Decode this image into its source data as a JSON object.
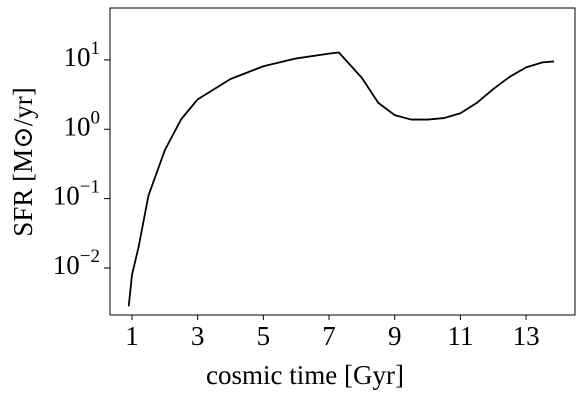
{
  "chart_data": {
    "type": "line",
    "x_label": "cosmic time [Gyr]",
    "y_label": "SFR [M⊙/yr]",
    "x": [
      0.9,
      1.0,
      1.2,
      1.5,
      2,
      2.5,
      3,
      4,
      5,
      6,
      7,
      7.3,
      8,
      8.5,
      9,
      9.5,
      10,
      10.5,
      11,
      11.5,
      12,
      12.5,
      13,
      13.5,
      13.85
    ],
    "series": [
      {
        "color": "#000000",
        "values": [
          0.0028,
          0.008,
          0.02,
          0.11,
          0.5,
          1.4,
          2.7,
          5.3,
          8.1,
          10.5,
          12.3,
          12.8,
          5.5,
          2.4,
          1.6,
          1.38,
          1.38,
          1.45,
          1.7,
          2.4,
          3.8,
          5.7,
          7.8,
          9.2,
          9.5
        ]
      }
    ],
    "xlim": [
      0.33,
      14.49
    ],
    "ylim": [
      0.0021,
      56
    ],
    "log_y": true,
    "xticks": [
      1,
      3,
      5,
      7,
      9,
      11,
      13
    ],
    "yticks": [
      {
        "value": 0.01,
        "label": "10^−2"
      },
      {
        "value": 0.1,
        "label": "10^−1"
      },
      {
        "value": 1,
        "label": "10^0"
      },
      {
        "value": 10,
        "label": "10^1"
      }
    ]
  }
}
